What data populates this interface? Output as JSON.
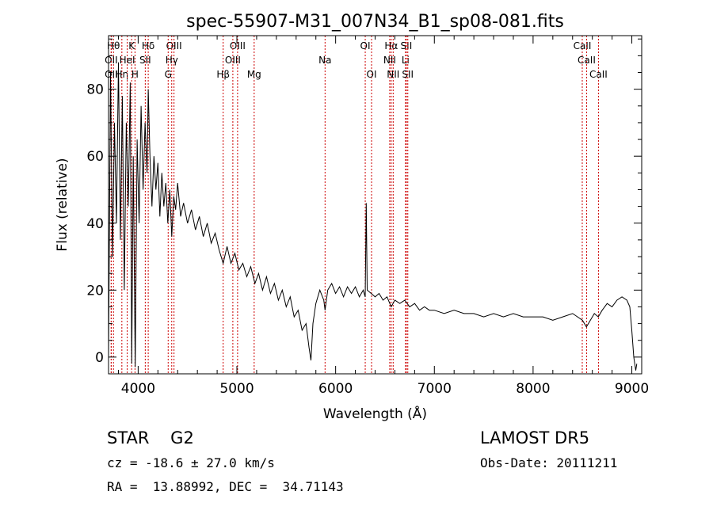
{
  "chart_data": {
    "type": "line",
    "title": "spec-55907-M31_007N34_B1_sp08-081.fits",
    "xlabel": "Wavelength (Å)",
    "ylabel": "Flux (relative)",
    "xlim": [
      3700,
      9100
    ],
    "ylim": [
      -5,
      96
    ],
    "xticks": [
      4000,
      5000,
      6000,
      7000,
      8000,
      9000
    ],
    "xtick_labels": [
      "4000",
      "5000",
      "6000",
      "7000",
      "8000",
      "9000"
    ],
    "yticks": [
      0,
      20,
      40,
      60,
      80
    ],
    "ytick_labels": [
      "0",
      "20",
      "40",
      "60",
      "80"
    ],
    "grid": false,
    "series": [
      {
        "color": "#000000",
        "points": [
          [
            3700,
            0
          ],
          [
            3720,
            85
          ],
          [
            3740,
            30
          ],
          [
            3760,
            70
          ],
          [
            3780,
            40
          ],
          [
            3800,
            88
          ],
          [
            3820,
            35
          ],
          [
            3840,
            78
          ],
          [
            3860,
            20
          ],
          [
            3880,
            70
          ],
          [
            3900,
            45
          ],
          [
            3920,
            82
          ],
          [
            3935,
            -2
          ],
          [
            3950,
            60
          ],
          [
            3970,
            -3
          ],
          [
            3990,
            65
          ],
          [
            4010,
            40
          ],
          [
            4030,
            75
          ],
          [
            4050,
            50
          ],
          [
            4070,
            70
          ],
          [
            4090,
            55
          ],
          [
            4102,
            80
          ],
          [
            4120,
            60
          ],
          [
            4140,
            45
          ],
          [
            4160,
            60
          ],
          [
            4180,
            50
          ],
          [
            4200,
            58
          ],
          [
            4220,
            42
          ],
          [
            4240,
            55
          ],
          [
            4260,
            45
          ],
          [
            4280,
            52
          ],
          [
            4300,
            40
          ],
          [
            4320,
            50
          ],
          [
            4340,
            36
          ],
          [
            4360,
            48
          ],
          [
            4380,
            44
          ],
          [
            4400,
            52
          ],
          [
            4430,
            42
          ],
          [
            4460,
            46
          ],
          [
            4500,
            40
          ],
          [
            4540,
            44
          ],
          [
            4580,
            38
          ],
          [
            4620,
            42
          ],
          [
            4660,
            36
          ],
          [
            4700,
            40
          ],
          [
            4740,
            34
          ],
          [
            4780,
            37
          ],
          [
            4820,
            32
          ],
          [
            4861,
            28
          ],
          [
            4900,
            33
          ],
          [
            4940,
            28
          ],
          [
            4980,
            31
          ],
          [
            5020,
            26
          ],
          [
            5060,
            28
          ],
          [
            5100,
            24
          ],
          [
            5140,
            27
          ],
          [
            5183,
            22
          ],
          [
            5220,
            25
          ],
          [
            5260,
            20
          ],
          [
            5300,
            24
          ],
          [
            5340,
            19
          ],
          [
            5380,
            22
          ],
          [
            5420,
            17
          ],
          [
            5460,
            20
          ],
          [
            5500,
            15
          ],
          [
            5540,
            18
          ],
          [
            5580,
            12
          ],
          [
            5620,
            14
          ],
          [
            5660,
            8
          ],
          [
            5700,
            10
          ],
          [
            5730,
            3
          ],
          [
            5750,
            -1
          ],
          [
            5770,
            10
          ],
          [
            5800,
            16
          ],
          [
            5840,
            20
          ],
          [
            5880,
            17
          ],
          [
            5893,
            14
          ],
          [
            5920,
            20
          ],
          [
            5960,
            22
          ],
          [
            6000,
            19
          ],
          [
            6040,
            21
          ],
          [
            6080,
            18
          ],
          [
            6120,
            21
          ],
          [
            6160,
            19
          ],
          [
            6200,
            21
          ],
          [
            6240,
            18
          ],
          [
            6280,
            20
          ],
          [
            6300,
            18
          ],
          [
            6310,
            46
          ],
          [
            6320,
            20
          ],
          [
            6360,
            19
          ],
          [
            6400,
            18
          ],
          [
            6440,
            19
          ],
          [
            6480,
            17
          ],
          [
            6520,
            18
          ],
          [
            6563,
            15
          ],
          [
            6600,
            17
          ],
          [
            6650,
            16
          ],
          [
            6700,
            17
          ],
          [
            6750,
            15
          ],
          [
            6800,
            16
          ],
          [
            6850,
            14
          ],
          [
            6900,
            15
          ],
          [
            6950,
            14
          ],
          [
            7000,
            14
          ],
          [
            7100,
            13
          ],
          [
            7200,
            14
          ],
          [
            7300,
            13
          ],
          [
            7400,
            13
          ],
          [
            7500,
            12
          ],
          [
            7600,
            13
          ],
          [
            7700,
            12
          ],
          [
            7800,
            13
          ],
          [
            7900,
            12
          ],
          [
            8000,
            12
          ],
          [
            8100,
            12
          ],
          [
            8200,
            11
          ],
          [
            8300,
            12
          ],
          [
            8400,
            13
          ],
          [
            8500,
            11
          ],
          [
            8540,
            9
          ],
          [
            8580,
            11
          ],
          [
            8620,
            13
          ],
          [
            8660,
            12
          ],
          [
            8700,
            14
          ],
          [
            8750,
            16
          ],
          [
            8800,
            15
          ],
          [
            8850,
            17
          ],
          [
            8900,
            18
          ],
          [
            8950,
            17
          ],
          [
            8980,
            15
          ],
          [
            9000,
            8
          ],
          [
            9020,
            0
          ],
          [
            9040,
            -4
          ],
          [
            9050,
            -2
          ]
        ]
      }
    ],
    "lines": [
      {
        "wave": 3750,
        "color": "#cc0000",
        "label": "Hθ",
        "row": 0
      },
      {
        "wave": 3727,
        "color": "#cc0000",
        "label": "OII",
        "row": 1
      },
      {
        "wave": 3727,
        "color": "#cc0000",
        "label": "OII",
        "row": 2
      },
      {
        "wave": 3835,
        "color": "#cc0000",
        "label": "Hη",
        "row": 2
      },
      {
        "wave": 3934,
        "color": "#cc0000",
        "label": "K",
        "row": 0
      },
      {
        "wave": 3889,
        "color": "#cc0000",
        "label": "HeI",
        "row": 1
      },
      {
        "wave": 3968,
        "color": "#cc0000",
        "label": "H",
        "row": 2
      },
      {
        "wave": 4102,
        "color": "#cc0000",
        "label": "Hδ",
        "row": 0
      },
      {
        "wave": 4072,
        "color": "#cc0000",
        "label": "SII",
        "row": 1
      },
      {
        "wave": 4363,
        "color": "#cc0000",
        "label": "OIII",
        "row": 0
      },
      {
        "wave": 4340,
        "color": "#cc0000",
        "label": "Hγ",
        "row": 1
      },
      {
        "wave": 4304,
        "color": "#cc0000",
        "label": "G",
        "row": 2
      },
      {
        "wave": 5007,
        "color": "#cc0000",
        "label": "OIII",
        "row": 0
      },
      {
        "wave": 4959,
        "color": "#cc0000",
        "label": "OIII",
        "row": 1
      },
      {
        "wave": 4861,
        "color": "#cc0000",
        "label": "Hβ",
        "row": 2
      },
      {
        "wave": 5175,
        "color": "#cc0000",
        "label": "Mg",
        "row": 2
      },
      {
        "wave": 5893,
        "color": "#cc0000",
        "label": "Na",
        "row": 1
      },
      {
        "wave": 6300,
        "color": "#cc0000",
        "label": "OI",
        "row": 0
      },
      {
        "wave": 6364,
        "color": "#cc0000",
        "label": "OI",
        "row": 2
      },
      {
        "wave": 6563,
        "color": "#cc0000",
        "label": "Hα",
        "row": 0
      },
      {
        "wave": 6548,
        "color": "#cc0000",
        "label": "NII",
        "row": 1
      },
      {
        "wave": 6583,
        "color": "#cc0000",
        "label": "NII",
        "row": 2
      },
      {
        "wave": 6716,
        "color": "#cc0000",
        "label": "SII",
        "row": 0
      },
      {
        "wave": 6708,
        "color": "#cc0000",
        "label": "Li",
        "row": 1
      },
      {
        "wave": 6731,
        "color": "#cc0000",
        "label": "SII",
        "row": 2
      },
      {
        "wave": 8498,
        "color": "#cc0000",
        "label": "CaII",
        "row": 0
      },
      {
        "wave": 8542,
        "color": "#cc0000",
        "label": "CaII",
        "row": 1
      },
      {
        "wave": 8662,
        "color": "#cc0000",
        "label": "CaII",
        "row": 2
      }
    ]
  },
  "info": {
    "class_line": "STAR    G2",
    "survey": "LAMOST DR5",
    "cz": "cz = -18.6 ± 27.0 km/s",
    "obs_date": "Obs-Date: 20111211",
    "radec": "RA =  13.88992, DEC =  34.71143"
  }
}
